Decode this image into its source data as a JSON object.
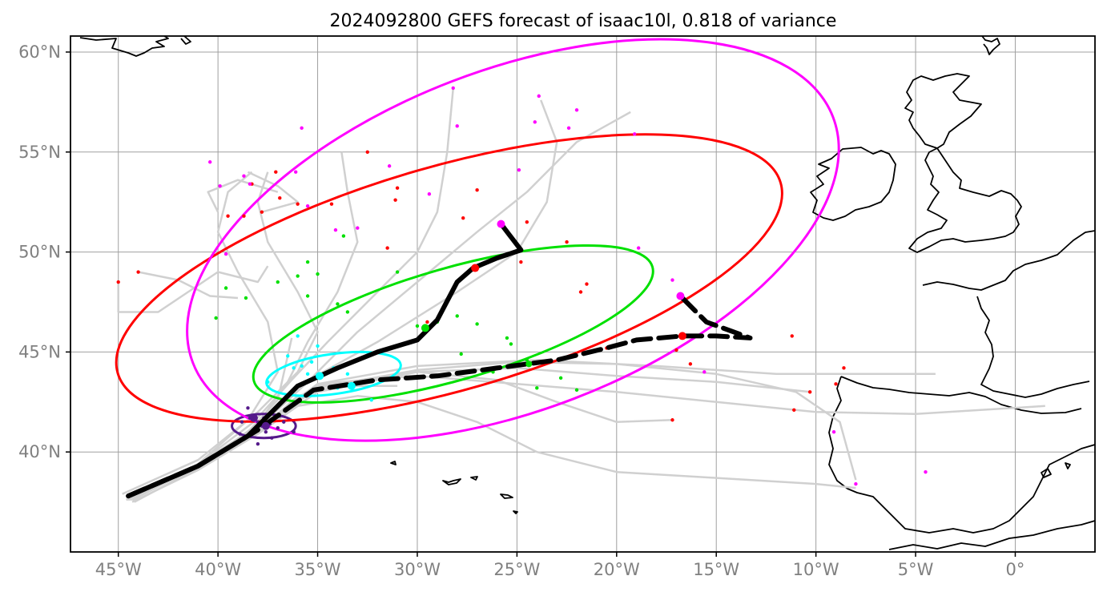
{
  "figure": {
    "title": "2024092800 GEFS forecast of isaac10l, 0.818 of variance",
    "lon_range": [
      -47.4,
      4
    ],
    "lat_range": [
      35,
      60.8
    ],
    "grid": true
  },
  "axes": {
    "x_ticks": [
      {
        "lon": -45,
        "label": "45°W"
      },
      {
        "lon": -40,
        "label": "40°W"
      },
      {
        "lon": -35,
        "label": "35°W"
      },
      {
        "lon": -30,
        "label": "30°W"
      },
      {
        "lon": -25,
        "label": "25°W"
      },
      {
        "lon": -20,
        "label": "20°W"
      },
      {
        "lon": -15,
        "label": "15°W"
      },
      {
        "lon": -10,
        "label": "10°W"
      },
      {
        "lon": -5,
        "label": "5°W"
      },
      {
        "lon": 0,
        "label": "0°"
      }
    ],
    "y_ticks": [
      {
        "lat": 40,
        "label": "40°N"
      },
      {
        "lat": 45,
        "label": "45°N"
      },
      {
        "lat": 50,
        "label": "50°N"
      },
      {
        "lat": 55,
        "label": "55°N"
      },
      {
        "lat": 60,
        "label": "60°N"
      }
    ]
  },
  "colors": {
    "member_track": "#d0d0d0",
    "main_track": "#000000",
    "purple": "#551a8b",
    "cyan": "#00ffff",
    "green": "#00e000",
    "red": "#ff0000",
    "magenta": "#ff00ff"
  },
  "chart_data": {
    "type": "map",
    "main_tracks": [
      {
        "style": "solid",
        "points": [
          [
            -44.5,
            37.8
          ],
          [
            -41,
            39.3
          ],
          [
            -38.5,
            40.8
          ],
          [
            -36,
            43.3
          ],
          [
            -34,
            44.2
          ],
          [
            -32,
            45
          ],
          [
            -30,
            45.6
          ],
          [
            -29,
            46.6
          ],
          [
            -28,
            48.5
          ],
          [
            -27.2,
            49.2
          ],
          [
            -26,
            49.7
          ],
          [
            -24.8,
            50.1
          ],
          [
            -25.8,
            51.4
          ]
        ]
      },
      {
        "style": "dashed",
        "points": [
          [
            -44.5,
            37.8
          ],
          [
            -41,
            39.3
          ],
          [
            -38,
            41.1
          ],
          [
            -35.2,
            43.1
          ],
          [
            -32,
            43.6
          ],
          [
            -29,
            43.8
          ],
          [
            -26,
            44.2
          ],
          [
            -23,
            44.6
          ],
          [
            -20.5,
            45.2
          ],
          [
            -19,
            45.6
          ],
          [
            -16.7,
            45.8
          ],
          [
            -15,
            45.8
          ],
          [
            -13.3,
            45.7
          ],
          [
            -15.5,
            46.5
          ],
          [
            -16.8,
            47.8
          ]
        ]
      }
    ],
    "member_tracks": [
      [
        [
          -44.8,
          37.9
        ],
        [
          -41,
          39.6
        ],
        [
          -38,
          42
        ],
        [
          -36,
          44
        ],
        [
          -35,
          46
        ],
        [
          -36,
          48
        ],
        [
          -37.5,
          50.5
        ],
        [
          -38,
          52.5
        ],
        [
          -37.5,
          54
        ]
      ],
      [
        [
          -44.5,
          37.6
        ],
        [
          -41,
          39.4
        ],
        [
          -38.5,
          41.6
        ],
        [
          -37,
          44
        ],
        [
          -37.5,
          46.5
        ],
        [
          -39,
          49
        ],
        [
          -40,
          51
        ],
        [
          -39.5,
          53
        ],
        [
          -38.3,
          54
        ]
      ],
      [
        [
          -44.2,
          37.5
        ],
        [
          -41,
          39.2
        ],
        [
          -38,
          41.4
        ],
        [
          -36.5,
          43.5
        ],
        [
          -35.5,
          45.5
        ],
        [
          -34,
          48
        ],
        [
          -33,
          50.5
        ],
        [
          -33.5,
          53
        ],
        [
          -33.8,
          55
        ]
      ],
      [
        [
          -44.6,
          37.7
        ],
        [
          -41,
          39.4
        ],
        [
          -38.2,
          41.5
        ],
        [
          -36.3,
          43.6
        ],
        [
          -34.5,
          45.5
        ],
        [
          -32,
          48
        ],
        [
          -30,
          50
        ],
        [
          -29,
          52
        ],
        [
          -28.5,
          55
        ],
        [
          -28.2,
          58.2
        ]
      ],
      [
        [
          -44.3,
          37.6
        ],
        [
          -41,
          39.3
        ],
        [
          -38,
          41.2
        ],
        [
          -35.5,
          43.5
        ],
        [
          -33,
          46
        ],
        [
          -30,
          48.5
        ],
        [
          -27,
          51
        ],
        [
          -24.5,
          53
        ],
        [
          -22,
          55.5
        ],
        [
          -19.3,
          57
        ]
      ],
      [
        [
          -44.5,
          37.7
        ],
        [
          -41,
          39.4
        ],
        [
          -38,
          41.3
        ],
        [
          -36,
          43.3
        ],
        [
          -32,
          45.5
        ],
        [
          -28,
          48
        ],
        [
          -25,
          50
        ],
        [
          -23.5,
          52.5
        ],
        [
          -23,
          55.5
        ],
        [
          -23.8,
          57.6
        ]
      ],
      [
        [
          -44.5,
          37.7
        ],
        [
          -41,
          39.2
        ],
        [
          -38,
          41
        ],
        [
          -35,
          43
        ],
        [
          -30,
          44
        ],
        [
          -26,
          43.6
        ],
        [
          -23,
          42.5
        ],
        [
          -20,
          41.5
        ],
        [
          -17.2,
          41.6
        ]
      ],
      [
        [
          -44.6,
          37.6
        ],
        [
          -41,
          39.3
        ],
        [
          -38,
          41.1
        ],
        [
          -35,
          43.3
        ],
        [
          -30,
          44
        ],
        [
          -25,
          44.2
        ],
        [
          -20,
          43.8
        ],
        [
          -15,
          43.5
        ],
        [
          -10.3,
          43
        ]
      ],
      [
        [
          -44.4,
          37.6
        ],
        [
          -41,
          39.3
        ],
        [
          -38,
          41.1
        ],
        [
          -35,
          43.2
        ],
        [
          -30,
          44.1
        ],
        [
          -25,
          44.5
        ],
        [
          -20,
          44.4
        ],
        [
          -15,
          43.9
        ],
        [
          -11,
          43
        ],
        [
          -8.8,
          41.5
        ],
        [
          -8,
          38.6
        ]
      ],
      [
        [
          -44.5,
          37.6
        ],
        [
          -41,
          39.3
        ],
        [
          -38,
          41.2
        ],
        [
          -35,
          43.4
        ],
        [
          -30,
          44.3
        ],
        [
          -24,
          44.6
        ],
        [
          -18,
          44.3
        ],
        [
          -12,
          43.9
        ],
        [
          -4,
          43.9
        ]
      ],
      [
        [
          -44.5,
          37.7
        ],
        [
          -41,
          39.4
        ],
        [
          -38,
          41.2
        ],
        [
          -35,
          43.4
        ],
        [
          -30,
          43.8
        ],
        [
          -25,
          43.4
        ],
        [
          -20,
          43
        ],
        [
          -15,
          42.5
        ],
        [
          -10,
          42
        ],
        [
          -5,
          41.9
        ],
        [
          1.5,
          42.3
        ]
      ],
      [
        [
          -44.3,
          37.5
        ],
        [
          -41,
          39.1
        ],
        [
          -38,
          40.9
        ],
        [
          -36,
          42.3
        ],
        [
          -33,
          42.8
        ],
        [
          -30,
          42.5
        ],
        [
          -27,
          41.5
        ],
        [
          -24,
          40
        ],
        [
          -20,
          39
        ],
        [
          -15,
          38.7
        ],
        [
          -10,
          38.4
        ],
        [
          -8,
          38.2
        ]
      ],
      [
        [
          -44.6,
          37.6
        ],
        [
          -41,
          39.2
        ],
        [
          -38.5,
          41
        ],
        [
          -37,
          42.6
        ],
        [
          -36.3,
          45.7
        ]
      ],
      [
        [
          -44.5,
          37.7
        ],
        [
          -41,
          39.3
        ],
        [
          -38,
          41
        ],
        [
          -36,
          42.8
        ],
        [
          -34,
          43.3
        ],
        [
          -31,
          43.3
        ]
      ],
      [
        [
          -45,
          48.5
        ],
        [
          -45,
          47
        ],
        [
          -43,
          47
        ],
        [
          -41.5,
          48
        ],
        [
          -40,
          49
        ],
        [
          -38,
          48.5
        ],
        [
          -37.5,
          49.3
        ]
      ],
      [
        [
          -44,
          49
        ],
        [
          -42,
          48.6
        ],
        [
          -40.4,
          47.8
        ],
        [
          -39,
          47.7
        ]
      ],
      [
        [
          -38.5,
          54
        ],
        [
          -37,
          53.3
        ],
        [
          -36,
          52.5
        ],
        [
          -37.8,
          52
        ]
      ],
      [
        [
          -37,
          53
        ],
        [
          -39,
          53.6
        ],
        [
          -40.5,
          53
        ],
        [
          -40,
          52
        ]
      ]
    ],
    "member_points": {
      "purple": [
        [
          -38.8,
          41.5
        ],
        [
          -38.4,
          41.7
        ],
        [
          -38,
          41.5
        ],
        [
          -37.7,
          41.7
        ],
        [
          -37.4,
          41.4
        ],
        [
          -37,
          41.2
        ],
        [
          -36.7,
          41.5
        ],
        [
          -38.2,
          41.1
        ],
        [
          -37.6,
          41
        ],
        [
          -36.9,
          41.8
        ],
        [
          -38.5,
          42.2
        ],
        [
          -37.3,
          40.7
        ],
        [
          -36.2,
          41
        ],
        [
          -38.9,
          40.9
        ],
        [
          -38,
          40.4
        ],
        [
          -37.8,
          41.3
        ]
      ],
      "cyan": [
        [
          -36.5,
          44.8
        ],
        [
          -35.8,
          44.3
        ],
        [
          -35.3,
          44.5
        ],
        [
          -34.8,
          43.8
        ],
        [
          -34.2,
          44.2
        ],
        [
          -33.5,
          43.9
        ],
        [
          -33,
          43.4
        ],
        [
          -32.5,
          43.5
        ],
        [
          -34,
          43.2
        ],
        [
          -35.5,
          43.9
        ],
        [
          -36.2,
          44.2
        ],
        [
          -35,
          45.3
        ],
        [
          -32.3,
          42.6
        ],
        [
          -37.5,
          43.5
        ],
        [
          -36,
          45.8
        ],
        [
          -31.5,
          43.6
        ]
      ],
      "green": [
        [
          -36,
          48.8
        ],
        [
          -35.5,
          47.8
        ],
        [
          -34,
          47.4
        ],
        [
          -33.5,
          47
        ],
        [
          -37,
          48.5
        ],
        [
          -38.6,
          47.7
        ],
        [
          -39.6,
          48.2
        ],
        [
          -40.1,
          46.7
        ],
        [
          -35,
          48.9
        ],
        [
          -31,
          49
        ],
        [
          -30,
          46.3
        ],
        [
          -29,
          46.5
        ],
        [
          -28,
          46.8
        ],
        [
          -27,
          46.4
        ],
        [
          -25.5,
          45.7
        ],
        [
          -25.3,
          45.4
        ],
        [
          -24.5,
          44.6
        ],
        [
          -22.8,
          43.7
        ],
        [
          -22,
          43.1
        ],
        [
          -24,
          43.2
        ],
        [
          -26.2,
          44
        ],
        [
          -27.8,
          44.9
        ],
        [
          -33.7,
          50.8
        ],
        [
          -35.5,
          49.5
        ]
      ],
      "red": [
        [
          -45,
          48.5
        ],
        [
          -44,
          49
        ],
        [
          -39.5,
          51.8
        ],
        [
          -38.7,
          51.8
        ],
        [
          -37.8,
          52
        ],
        [
          -36.9,
          52.7
        ],
        [
          -36,
          52.4
        ],
        [
          -34.3,
          52.4
        ],
        [
          -31.5,
          50.2
        ],
        [
          -31.1,
          52.6
        ],
        [
          -31,
          53.2
        ],
        [
          -29.5,
          46.5
        ],
        [
          -27.7,
          51.7
        ],
        [
          -27,
          53.1
        ],
        [
          -24.8,
          49.5
        ],
        [
          -24.5,
          51.5
        ],
        [
          -22.5,
          50.5
        ],
        [
          -21.8,
          48
        ],
        [
          -21.5,
          48.4
        ],
        [
          -20.5,
          45.2
        ],
        [
          -17.2,
          41.6
        ],
        [
          -17,
          45.1
        ],
        [
          -16.3,
          44.4
        ],
        [
          -11.1,
          42.1
        ],
        [
          -11.2,
          45.8
        ],
        [
          -10.3,
          43
        ],
        [
          -8.6,
          44.2
        ],
        [
          -9,
          43.4
        ],
        [
          -32.5,
          55
        ],
        [
          -37.1,
          54
        ],
        [
          -38.3,
          53.4
        ]
      ],
      "magenta": [
        [
          -38.4,
          53.4
        ],
        [
          -38.7,
          53.8
        ],
        [
          -36.1,
          54
        ],
        [
          -35.8,
          56.2
        ],
        [
          -35.5,
          52.3
        ],
        [
          -34.1,
          51.1
        ],
        [
          -33,
          51.2
        ],
        [
          -31.4,
          54.3
        ],
        [
          -29.4,
          52.9
        ],
        [
          -28.2,
          58.2
        ],
        [
          -28,
          56.3
        ],
        [
          -24.9,
          54.1
        ],
        [
          -23.9,
          57.8
        ],
        [
          -24.1,
          56.5
        ],
        [
          -22.4,
          56.2
        ],
        [
          -22,
          57.1
        ],
        [
          -19.1,
          55.9
        ],
        [
          -18.9,
          50.2
        ],
        [
          -17.2,
          48.6
        ],
        [
          -15.6,
          44
        ],
        [
          -39.9,
          53.3
        ],
        [
          -39.6,
          49.9
        ],
        [
          -40.4,
          54.5
        ],
        [
          -9.1,
          41
        ],
        [
          -8,
          38.4
        ],
        [
          -4.5,
          39
        ]
      ]
    },
    "markers": [
      {
        "color": "purple",
        "size": 5,
        "point": [
          -38.2,
          41.7
        ]
      },
      {
        "color": "purple",
        "size": 5,
        "point": [
          -37.6,
          41.3
        ]
      },
      {
        "color": "cyan",
        "size": 5,
        "point": [
          -34.9,
          43.8
        ]
      },
      {
        "color": "cyan",
        "size": 5,
        "point": [
          -33.3,
          43.3
        ]
      },
      {
        "color": "green",
        "size": 5,
        "point": [
          -29.6,
          46.2
        ]
      },
      {
        "color": "green",
        "size": 4,
        "point": [
          -24.4,
          44.4
        ]
      },
      {
        "color": "red",
        "size": 5,
        "point": [
          -27.1,
          49.2
        ]
      },
      {
        "color": "red",
        "size": 5,
        "point": [
          -16.7,
          45.8
        ]
      },
      {
        "color": "magenta",
        "size": 5,
        "point": [
          -25.8,
          51.4
        ]
      },
      {
        "color": "magenta",
        "size": 5,
        "point": [
          -16.8,
          47.8
        ]
      }
    ],
    "ellipses": [
      {
        "color": "purple",
        "center": [
          -37.7,
          41.3
        ],
        "radii": [
          1.6,
          0.6
        ],
        "angle": 0
      },
      {
        "color": "cyan",
        "center": [
          -34.2,
          43.9
        ],
        "radii": [
          3.4,
          1.0
        ],
        "angle": -8
      },
      {
        "color": "green",
        "center": [
          -28.2,
          46.4
        ],
        "radii": [
          10.4,
          2.8
        ],
        "angle": -16
      },
      {
        "color": "red",
        "center": [
          -28.4,
          48.7
        ],
        "radii": [
          17.3,
          5.6
        ],
        "angle": -16
      },
      {
        "color": "magenta",
        "center": [
          -25.2,
          50.6
        ],
        "radii": [
          17.2,
          8.5
        ],
        "angle": -21
      }
    ]
  }
}
